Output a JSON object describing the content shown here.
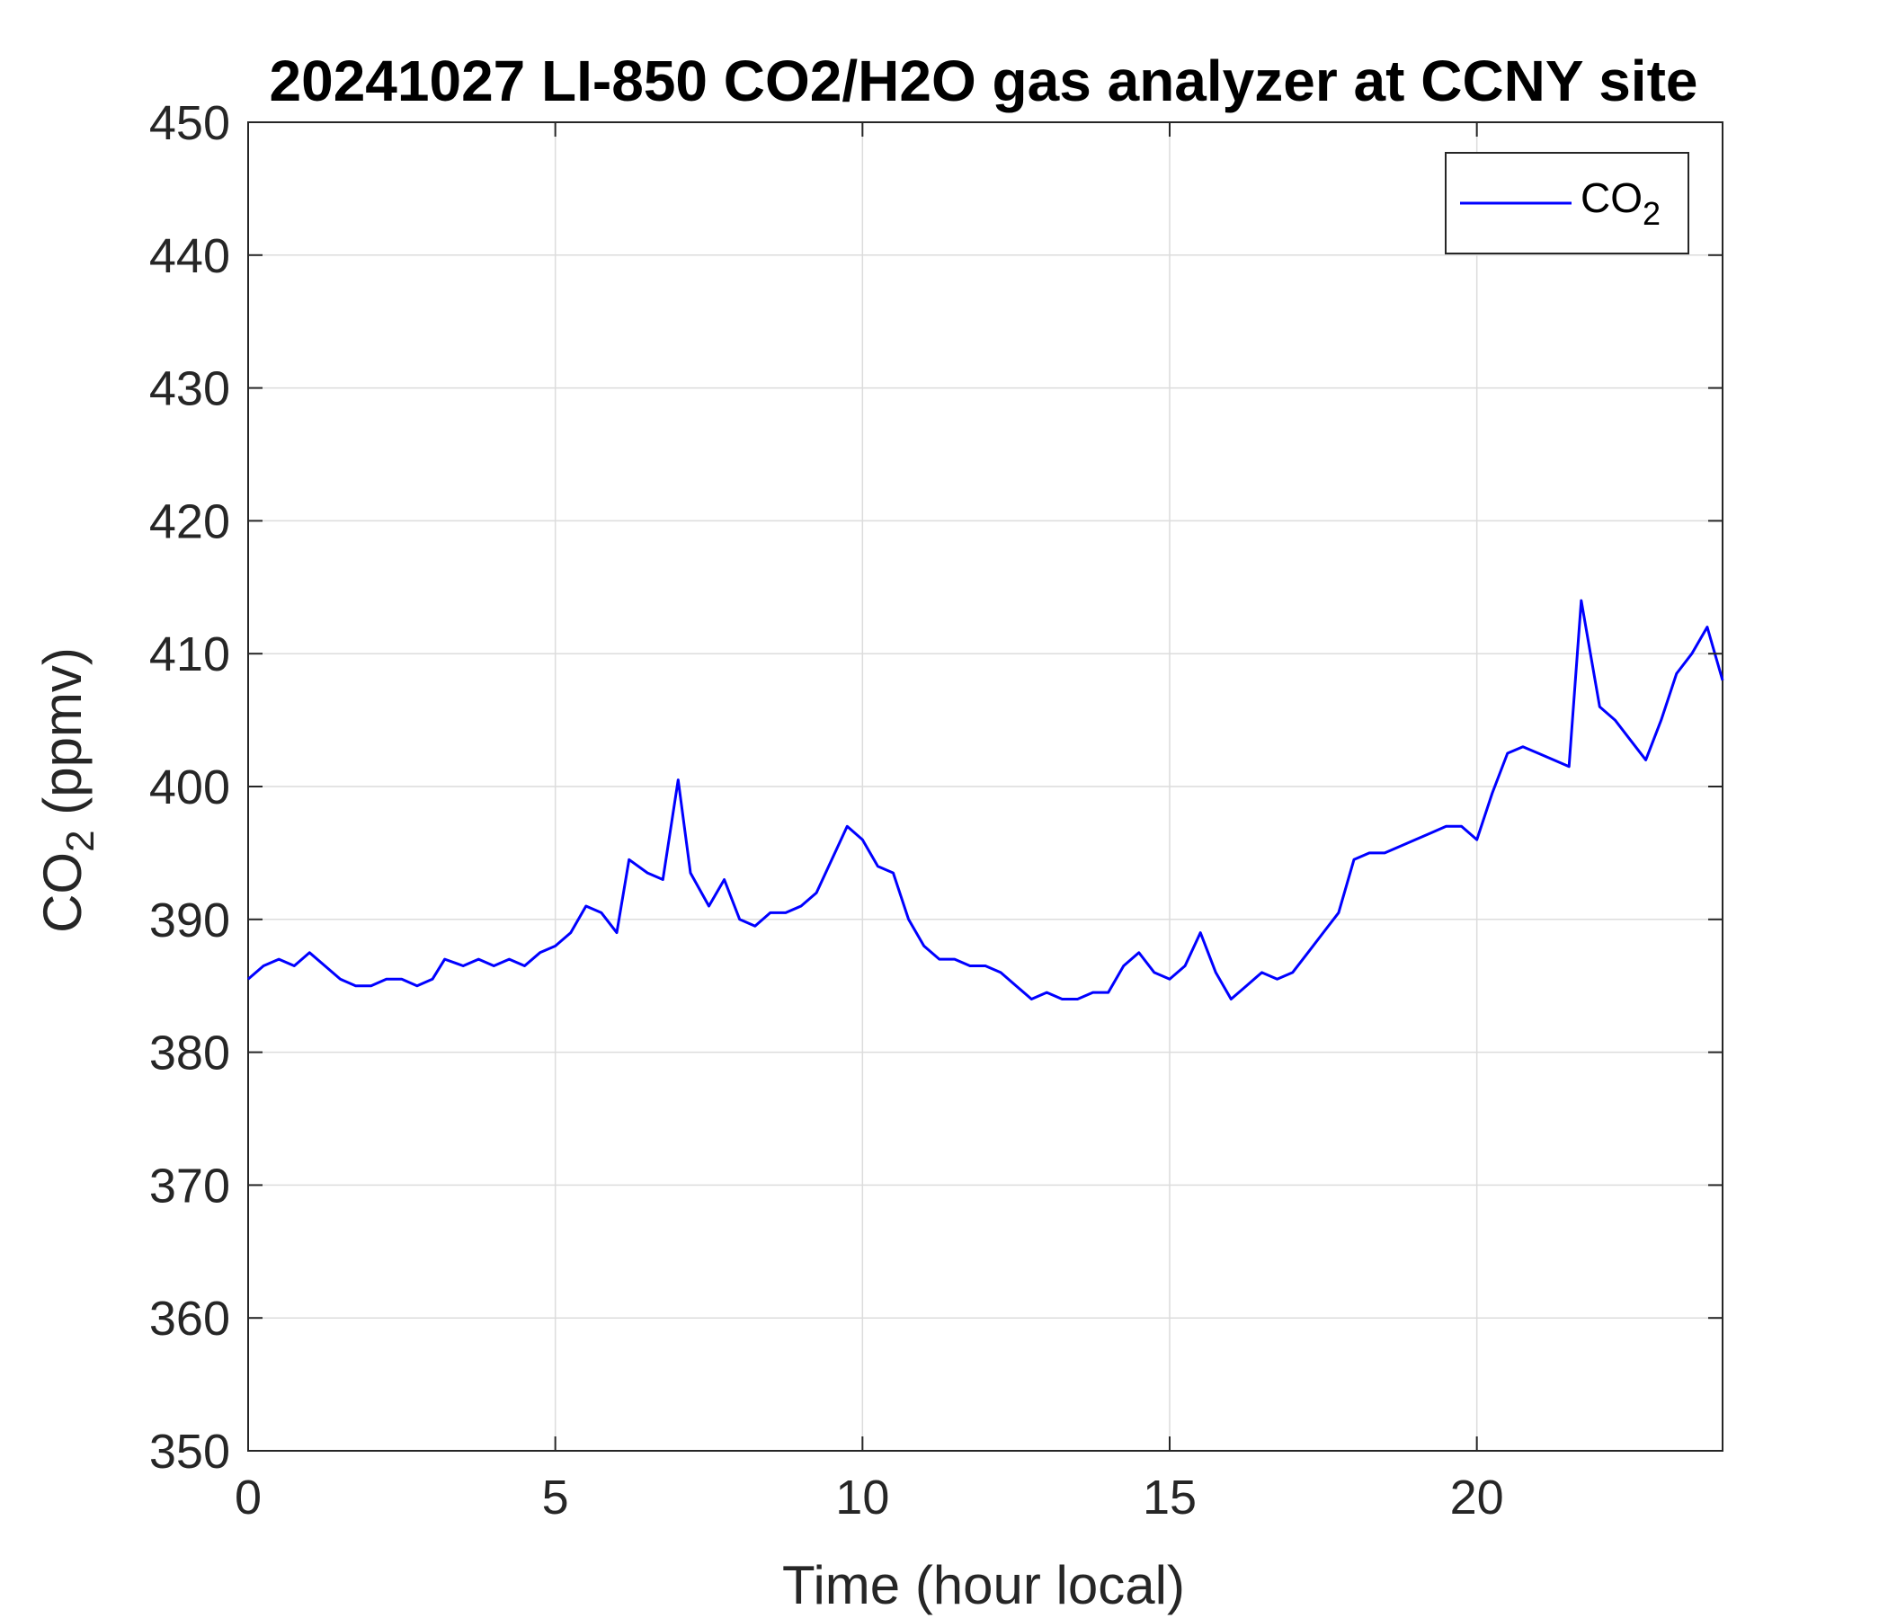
{
  "chart_data": {
    "type": "line",
    "title": "20241027 LI-850 CO2/H2O gas analyzer at CCNY site",
    "xlabel": "Time (hour local)",
    "ylabel_main": "CO",
    "ylabel_sub": "2",
    "ylabel_tail": " (ppmv)",
    "xlim": [
      0,
      24
    ],
    "ylim": [
      350,
      450
    ],
    "xticks": [
      0,
      5,
      10,
      15,
      20
    ],
    "yticks": [
      350,
      360,
      370,
      380,
      390,
      400,
      410,
      420,
      430,
      440,
      450
    ],
    "grid": true,
    "legend_placement": "top-right",
    "series": [
      {
        "name_main": "CO",
        "name_sub": "2",
        "color": "#0000ff",
        "x": [
          0,
          0.25,
          0.5,
          0.75,
          1.0,
          1.25,
          1.5,
          1.75,
          2.0,
          2.25,
          2.5,
          2.75,
          3.0,
          3.2,
          3.5,
          3.75,
          4.0,
          4.25,
          4.5,
          4.75,
          5.0,
          5.25,
          5.5,
          5.75,
          6.0,
          6.2,
          6.5,
          6.75,
          7.0,
          7.2,
          7.5,
          7.75,
          8.0,
          8.25,
          8.5,
          8.75,
          9.0,
          9.25,
          9.5,
          9.75,
          10.0,
          10.25,
          10.5,
          10.75,
          11.0,
          11.25,
          11.5,
          11.75,
          12.0,
          12.25,
          12.5,
          12.75,
          13.0,
          13.25,
          13.5,
          13.75,
          14.0,
          14.25,
          14.5,
          14.75,
          15.0,
          15.25,
          15.5,
          15.75,
          16.0,
          16.25,
          16.5,
          16.75,
          17.0,
          17.25,
          17.5,
          17.75,
          18.0,
          18.25,
          18.5,
          18.75,
          19.0,
          19.25,
          19.5,
          19.75,
          20.0,
          20.25,
          20.5,
          20.75,
          21.0,
          21.25,
          21.5,
          21.7,
          22.0,
          22.25,
          22.5,
          22.75,
          23.0,
          23.25,
          23.5,
          23.75,
          24.0
        ],
        "values": [
          385.5,
          386.5,
          387.0,
          386.5,
          387.5,
          386.5,
          385.5,
          385.0,
          385.0,
          385.5,
          385.5,
          385.0,
          385.5,
          387.0,
          386.5,
          387.0,
          386.5,
          387.0,
          386.5,
          387.5,
          388.0,
          389.0,
          391.0,
          390.5,
          389.0,
          394.5,
          393.5,
          393.0,
          400.5,
          393.5,
          391.0,
          393.0,
          390.0,
          389.5,
          390.5,
          390.5,
          391.0,
          392.0,
          394.5,
          397.0,
          396.0,
          394.0,
          393.5,
          390.0,
          388.0,
          387.0,
          387.0,
          386.5,
          386.5,
          386.0,
          385.0,
          384.0,
          384.5,
          384.0,
          384.0,
          384.5,
          384.5,
          386.5,
          387.5,
          386.0,
          385.5,
          386.5,
          389.0,
          386.0,
          384.0,
          385.0,
          386.0,
          385.5,
          386.0,
          387.5,
          389.0,
          390.5,
          394.5,
          395.0,
          395.0,
          395.5,
          396.0,
          396.5,
          397.0,
          397.0,
          396.0,
          399.5,
          402.5,
          403.0,
          402.5,
          402.0,
          401.5,
          414.0,
          406.0,
          405.0,
          403.5,
          402.0,
          405.0,
          408.5,
          410.0,
          412.0,
          408.0
        ]
      }
    ]
  }
}
